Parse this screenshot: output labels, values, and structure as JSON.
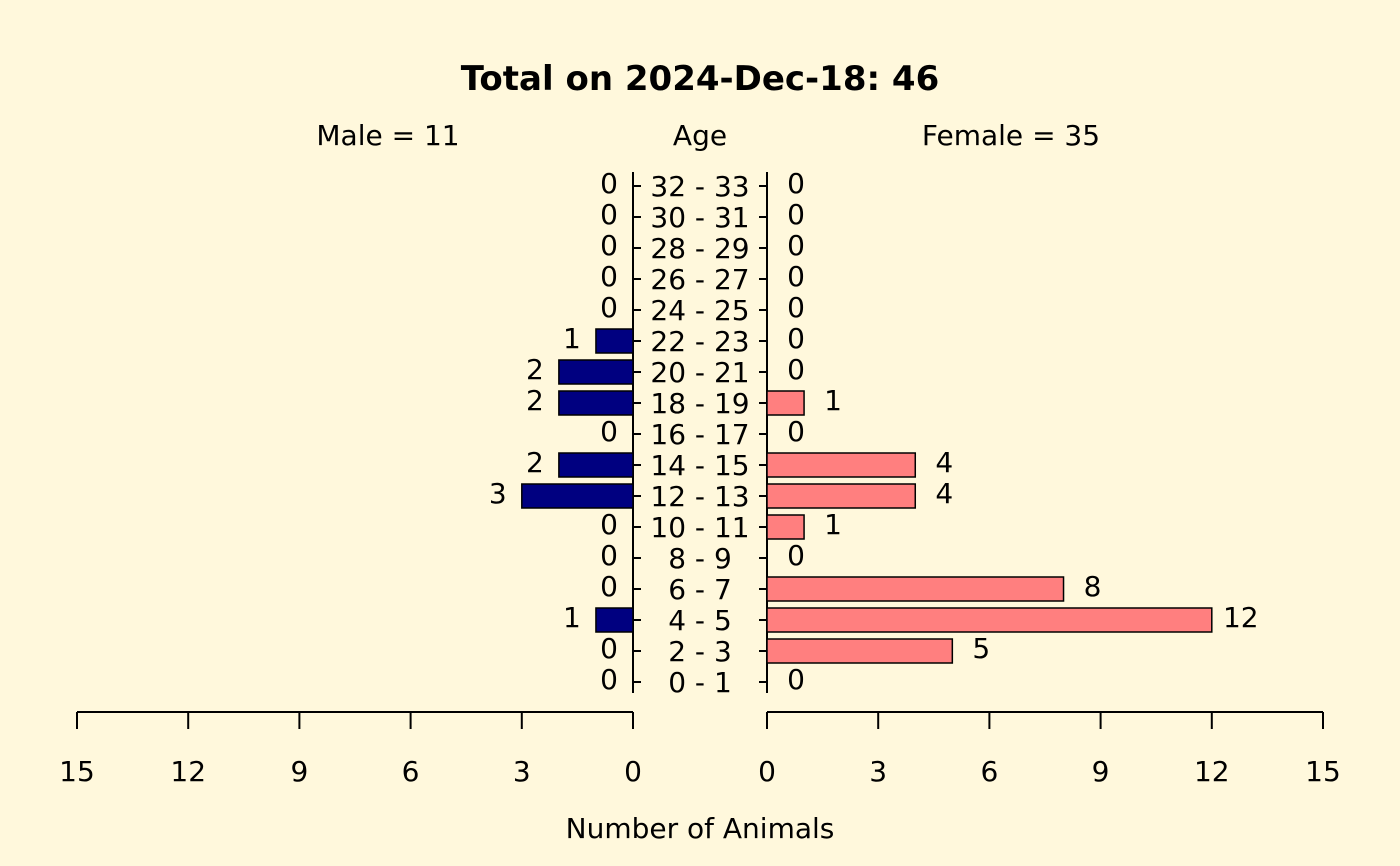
{
  "chart_data": {
    "type": "bar",
    "title": "Total on 2024-Dec-18: 46",
    "male_label": "Male = 11",
    "female_label": "Female = 35",
    "center_label": "Age",
    "xlabel": "Number of Animals",
    "categories": [
      "0 - 1",
      "2 - 3",
      "4 - 5",
      "6 - 7",
      "8 - 9",
      "10 - 11",
      "12 - 13",
      "14 - 15",
      "16 - 17",
      "18 - 19",
      "20 - 21",
      "22 - 23",
      "24 - 25",
      "26 - 27",
      "28 - 29",
      "30 - 31",
      "32 - 33"
    ],
    "series": [
      {
        "name": "Male",
        "values": [
          0,
          0,
          1,
          0,
          0,
          0,
          3,
          2,
          0,
          2,
          2,
          1,
          0,
          0,
          0,
          0,
          0
        ]
      },
      {
        "name": "Female",
        "values": [
          0,
          5,
          12,
          8,
          0,
          1,
          4,
          4,
          0,
          1,
          0,
          0,
          0,
          0,
          0,
          0,
          0
        ]
      }
    ],
    "xlim": [
      0,
      15
    ],
    "xticks": [
      0,
      3,
      6,
      9,
      12,
      15
    ],
    "colors": {
      "male": "#000080",
      "female": "#FF7F7F",
      "background": "#FFF8DC"
    }
  }
}
